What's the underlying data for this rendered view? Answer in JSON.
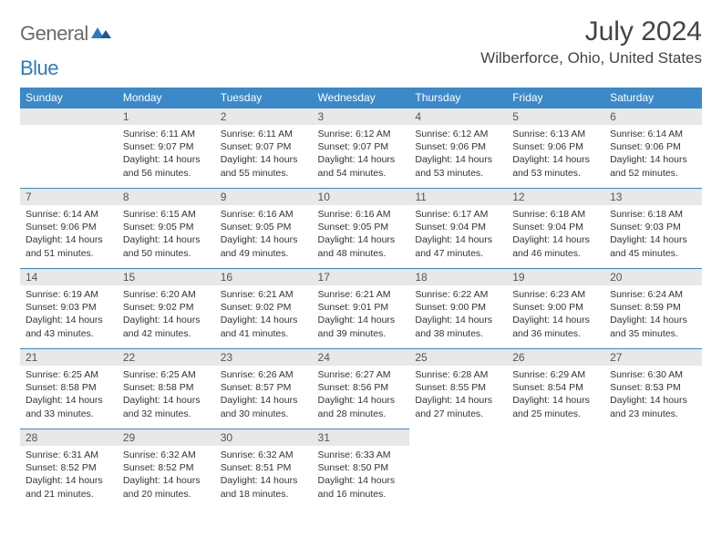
{
  "brand": {
    "part1": "General",
    "part2": "Blue"
  },
  "title": "July 2024",
  "location": "Wilberforce, Ohio, United States",
  "colors": {
    "header_bg": "#3b89c9",
    "header_text": "#ffffff",
    "daynum_bg": "#e8e8e8",
    "border": "#3b89c9",
    "brand_gray": "#6b6b6b",
    "brand_blue": "#2f7bbf"
  },
  "weekdays": [
    "Sunday",
    "Monday",
    "Tuesday",
    "Wednesday",
    "Thursday",
    "Friday",
    "Saturday"
  ],
  "weeks": [
    [
      null,
      {
        "n": "1",
        "sunrise": "Sunrise: 6:11 AM",
        "sunset": "Sunset: 9:07 PM",
        "day1": "Daylight: 14 hours",
        "day2": "and 56 minutes."
      },
      {
        "n": "2",
        "sunrise": "Sunrise: 6:11 AM",
        "sunset": "Sunset: 9:07 PM",
        "day1": "Daylight: 14 hours",
        "day2": "and 55 minutes."
      },
      {
        "n": "3",
        "sunrise": "Sunrise: 6:12 AM",
        "sunset": "Sunset: 9:07 PM",
        "day1": "Daylight: 14 hours",
        "day2": "and 54 minutes."
      },
      {
        "n": "4",
        "sunrise": "Sunrise: 6:12 AM",
        "sunset": "Sunset: 9:06 PM",
        "day1": "Daylight: 14 hours",
        "day2": "and 53 minutes."
      },
      {
        "n": "5",
        "sunrise": "Sunrise: 6:13 AM",
        "sunset": "Sunset: 9:06 PM",
        "day1": "Daylight: 14 hours",
        "day2": "and 53 minutes."
      },
      {
        "n": "6",
        "sunrise": "Sunrise: 6:14 AM",
        "sunset": "Sunset: 9:06 PM",
        "day1": "Daylight: 14 hours",
        "day2": "and 52 minutes."
      }
    ],
    [
      {
        "n": "7",
        "sunrise": "Sunrise: 6:14 AM",
        "sunset": "Sunset: 9:06 PM",
        "day1": "Daylight: 14 hours",
        "day2": "and 51 minutes."
      },
      {
        "n": "8",
        "sunrise": "Sunrise: 6:15 AM",
        "sunset": "Sunset: 9:05 PM",
        "day1": "Daylight: 14 hours",
        "day2": "and 50 minutes."
      },
      {
        "n": "9",
        "sunrise": "Sunrise: 6:16 AM",
        "sunset": "Sunset: 9:05 PM",
        "day1": "Daylight: 14 hours",
        "day2": "and 49 minutes."
      },
      {
        "n": "10",
        "sunrise": "Sunrise: 6:16 AM",
        "sunset": "Sunset: 9:05 PM",
        "day1": "Daylight: 14 hours",
        "day2": "and 48 minutes."
      },
      {
        "n": "11",
        "sunrise": "Sunrise: 6:17 AM",
        "sunset": "Sunset: 9:04 PM",
        "day1": "Daylight: 14 hours",
        "day2": "and 47 minutes."
      },
      {
        "n": "12",
        "sunrise": "Sunrise: 6:18 AM",
        "sunset": "Sunset: 9:04 PM",
        "day1": "Daylight: 14 hours",
        "day2": "and 46 minutes."
      },
      {
        "n": "13",
        "sunrise": "Sunrise: 6:18 AM",
        "sunset": "Sunset: 9:03 PM",
        "day1": "Daylight: 14 hours",
        "day2": "and 45 minutes."
      }
    ],
    [
      {
        "n": "14",
        "sunrise": "Sunrise: 6:19 AM",
        "sunset": "Sunset: 9:03 PM",
        "day1": "Daylight: 14 hours",
        "day2": "and 43 minutes."
      },
      {
        "n": "15",
        "sunrise": "Sunrise: 6:20 AM",
        "sunset": "Sunset: 9:02 PM",
        "day1": "Daylight: 14 hours",
        "day2": "and 42 minutes."
      },
      {
        "n": "16",
        "sunrise": "Sunrise: 6:21 AM",
        "sunset": "Sunset: 9:02 PM",
        "day1": "Daylight: 14 hours",
        "day2": "and 41 minutes."
      },
      {
        "n": "17",
        "sunrise": "Sunrise: 6:21 AM",
        "sunset": "Sunset: 9:01 PM",
        "day1": "Daylight: 14 hours",
        "day2": "and 39 minutes."
      },
      {
        "n": "18",
        "sunrise": "Sunrise: 6:22 AM",
        "sunset": "Sunset: 9:00 PM",
        "day1": "Daylight: 14 hours",
        "day2": "and 38 minutes."
      },
      {
        "n": "19",
        "sunrise": "Sunrise: 6:23 AM",
        "sunset": "Sunset: 9:00 PM",
        "day1": "Daylight: 14 hours",
        "day2": "and 36 minutes."
      },
      {
        "n": "20",
        "sunrise": "Sunrise: 6:24 AM",
        "sunset": "Sunset: 8:59 PM",
        "day1": "Daylight: 14 hours",
        "day2": "and 35 minutes."
      }
    ],
    [
      {
        "n": "21",
        "sunrise": "Sunrise: 6:25 AM",
        "sunset": "Sunset: 8:58 PM",
        "day1": "Daylight: 14 hours",
        "day2": "and 33 minutes."
      },
      {
        "n": "22",
        "sunrise": "Sunrise: 6:25 AM",
        "sunset": "Sunset: 8:58 PM",
        "day1": "Daylight: 14 hours",
        "day2": "and 32 minutes."
      },
      {
        "n": "23",
        "sunrise": "Sunrise: 6:26 AM",
        "sunset": "Sunset: 8:57 PM",
        "day1": "Daylight: 14 hours",
        "day2": "and 30 minutes."
      },
      {
        "n": "24",
        "sunrise": "Sunrise: 6:27 AM",
        "sunset": "Sunset: 8:56 PM",
        "day1": "Daylight: 14 hours",
        "day2": "and 28 minutes."
      },
      {
        "n": "25",
        "sunrise": "Sunrise: 6:28 AM",
        "sunset": "Sunset: 8:55 PM",
        "day1": "Daylight: 14 hours",
        "day2": "and 27 minutes."
      },
      {
        "n": "26",
        "sunrise": "Sunrise: 6:29 AM",
        "sunset": "Sunset: 8:54 PM",
        "day1": "Daylight: 14 hours",
        "day2": "and 25 minutes."
      },
      {
        "n": "27",
        "sunrise": "Sunrise: 6:30 AM",
        "sunset": "Sunset: 8:53 PM",
        "day1": "Daylight: 14 hours",
        "day2": "and 23 minutes."
      }
    ],
    [
      {
        "n": "28",
        "sunrise": "Sunrise: 6:31 AM",
        "sunset": "Sunset: 8:52 PM",
        "day1": "Daylight: 14 hours",
        "day2": "and 21 minutes."
      },
      {
        "n": "29",
        "sunrise": "Sunrise: 6:32 AM",
        "sunset": "Sunset: 8:52 PM",
        "day1": "Daylight: 14 hours",
        "day2": "and 20 minutes."
      },
      {
        "n": "30",
        "sunrise": "Sunrise: 6:32 AM",
        "sunset": "Sunset: 8:51 PM",
        "day1": "Daylight: 14 hours",
        "day2": "and 18 minutes."
      },
      {
        "n": "31",
        "sunrise": "Sunrise: 6:33 AM",
        "sunset": "Sunset: 8:50 PM",
        "day1": "Daylight: 14 hours",
        "day2": "and 16 minutes."
      },
      null,
      null,
      null
    ]
  ]
}
